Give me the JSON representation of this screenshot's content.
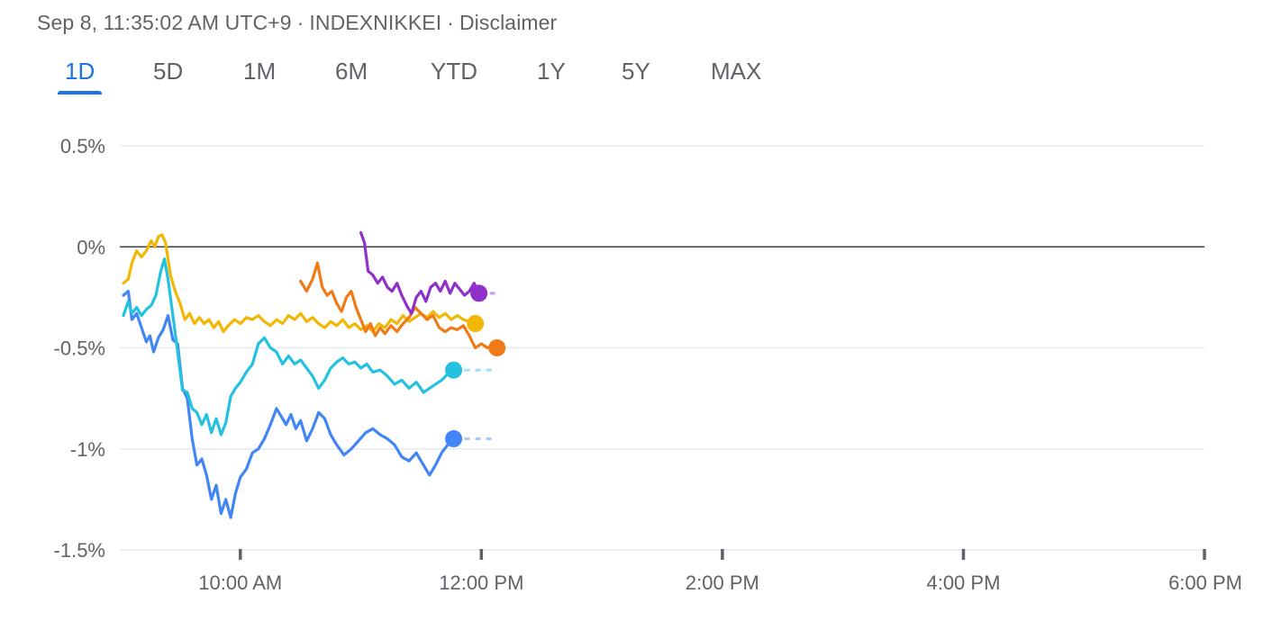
{
  "header": {
    "timestamp": "Sep 8, 11:35:02 AM UTC+9",
    "index": "INDEXNIKKEI",
    "disclaimer": "Disclaimer",
    "separator": "·"
  },
  "tabs": [
    {
      "label": "1D",
      "active": true
    },
    {
      "label": "5D",
      "active": false
    },
    {
      "label": "1M",
      "active": false
    },
    {
      "label": "6M",
      "active": false
    },
    {
      "label": "YTD",
      "active": false
    },
    {
      "label": "1Y",
      "active": false
    },
    {
      "label": "5Y",
      "active": false
    },
    {
      "label": "MAX",
      "active": false
    }
  ],
  "chart_data": {
    "type": "line",
    "title": "",
    "xlabel": "",
    "ylabel": "",
    "x_unit": "hours",
    "xlim": [
      9.0,
      18.0
    ],
    "ylim": [
      -1.5,
      0.5
    ],
    "y_ticks": [
      {
        "value": 0.5,
        "label": "0.5%"
      },
      {
        "value": 0,
        "label": "0%"
      },
      {
        "value": -0.5,
        "label": "-0.5%"
      },
      {
        "value": -1,
        "label": "-1%"
      },
      {
        "value": -1.5,
        "label": "-1.5%"
      }
    ],
    "x_ticks": [
      {
        "value": 10,
        "label": "10:00 AM"
      },
      {
        "value": 12,
        "label": "12:00 PM"
      },
      {
        "value": 14,
        "label": "2:00 PM"
      },
      {
        "value": 16,
        "label": "4:00 PM"
      },
      {
        "value": 18,
        "label": "6:00 PM"
      }
    ],
    "baseline": 0,
    "grid": true,
    "series": [
      {
        "color": "#4285f4",
        "extend_to": 12.13,
        "points": [
          [
            9.03,
            -0.24
          ],
          [
            9.07,
            -0.22
          ],
          [
            9.1,
            -0.36
          ],
          [
            9.14,
            -0.33
          ],
          [
            9.18,
            -0.4
          ],
          [
            9.22,
            -0.47
          ],
          [
            9.25,
            -0.44
          ],
          [
            9.28,
            -0.52
          ],
          [
            9.32,
            -0.45
          ],
          [
            9.36,
            -0.41
          ],
          [
            9.4,
            -0.34
          ],
          [
            9.44,
            -0.46
          ],
          [
            9.48,
            -0.48
          ],
          [
            9.52,
            -0.7
          ],
          [
            9.56,
            -0.75
          ],
          [
            9.6,
            -0.95
          ],
          [
            9.64,
            -1.08
          ],
          [
            9.68,
            -1.05
          ],
          [
            9.72,
            -1.13
          ],
          [
            9.76,
            -1.25
          ],
          [
            9.8,
            -1.18
          ],
          [
            9.84,
            -1.32
          ],
          [
            9.88,
            -1.25
          ],
          [
            9.92,
            -1.34
          ],
          [
            9.96,
            -1.22
          ],
          [
            10.0,
            -1.14
          ],
          [
            10.05,
            -1.1
          ],
          [
            10.1,
            -1.02
          ],
          [
            10.15,
            -1.0
          ],
          [
            10.2,
            -0.95
          ],
          [
            10.25,
            -0.88
          ],
          [
            10.3,
            -0.8
          ],
          [
            10.34,
            -0.84
          ],
          [
            10.38,
            -0.88
          ],
          [
            10.42,
            -0.83
          ],
          [
            10.46,
            -0.9
          ],
          [
            10.5,
            -0.86
          ],
          [
            10.55,
            -0.96
          ],
          [
            10.6,
            -0.9
          ],
          [
            10.65,
            -0.82
          ],
          [
            10.7,
            -0.85
          ],
          [
            10.75,
            -0.93
          ],
          [
            10.8,
            -0.98
          ],
          [
            10.86,
            -1.03
          ],
          [
            10.92,
            -1.0
          ],
          [
            10.98,
            -0.96
          ],
          [
            11.04,
            -0.92
          ],
          [
            11.1,
            -0.9
          ],
          [
            11.16,
            -0.93
          ],
          [
            11.22,
            -0.95
          ],
          [
            11.28,
            -0.98
          ],
          [
            11.34,
            -1.04
          ],
          [
            11.4,
            -1.06
          ],
          [
            11.46,
            -1.02
          ],
          [
            11.52,
            -1.08
          ],
          [
            11.57,
            -1.13
          ],
          [
            11.62,
            -1.08
          ],
          [
            11.67,
            -1.02
          ],
          [
            11.72,
            -0.98
          ],
          [
            11.77,
            -0.95
          ]
        ]
      },
      {
        "color": "#24c1e0",
        "extend_to": 12.13,
        "points": [
          [
            9.03,
            -0.34
          ],
          [
            9.07,
            -0.27
          ],
          [
            9.1,
            -0.33
          ],
          [
            9.14,
            -0.3
          ],
          [
            9.18,
            -0.34
          ],
          [
            9.22,
            -0.31
          ],
          [
            9.26,
            -0.29
          ],
          [
            9.3,
            -0.24
          ],
          [
            9.34,
            -0.12
          ],
          [
            9.37,
            -0.06
          ],
          [
            9.4,
            -0.16
          ],
          [
            9.44,
            -0.34
          ],
          [
            9.48,
            -0.52
          ],
          [
            9.52,
            -0.71
          ],
          [
            9.56,
            -0.72
          ],
          [
            9.6,
            -0.8
          ],
          [
            9.64,
            -0.82
          ],
          [
            9.68,
            -0.88
          ],
          [
            9.72,
            -0.83
          ],
          [
            9.76,
            -0.92
          ],
          [
            9.8,
            -0.85
          ],
          [
            9.84,
            -0.93
          ],
          [
            9.88,
            -0.87
          ],
          [
            9.92,
            -0.74
          ],
          [
            9.96,
            -0.7
          ],
          [
            10.0,
            -0.67
          ],
          [
            10.05,
            -0.62
          ],
          [
            10.1,
            -0.58
          ],
          [
            10.15,
            -0.48
          ],
          [
            10.2,
            -0.45
          ],
          [
            10.25,
            -0.5
          ],
          [
            10.3,
            -0.52
          ],
          [
            10.35,
            -0.58
          ],
          [
            10.4,
            -0.54
          ],
          [
            10.45,
            -0.58
          ],
          [
            10.5,
            -0.56
          ],
          [
            10.55,
            -0.6
          ],
          [
            10.6,
            -0.64
          ],
          [
            10.65,
            -0.7
          ],
          [
            10.7,
            -0.66
          ],
          [
            10.75,
            -0.6
          ],
          [
            10.8,
            -0.57
          ],
          [
            10.85,
            -0.55
          ],
          [
            10.9,
            -0.58
          ],
          [
            10.95,
            -0.57
          ],
          [
            11.0,
            -0.6
          ],
          [
            11.05,
            -0.58
          ],
          [
            11.1,
            -0.62
          ],
          [
            11.16,
            -0.61
          ],
          [
            11.22,
            -0.64
          ],
          [
            11.28,
            -0.68
          ],
          [
            11.34,
            -0.66
          ],
          [
            11.4,
            -0.7
          ],
          [
            11.46,
            -0.67
          ],
          [
            11.52,
            -0.72
          ],
          [
            11.57,
            -0.7
          ],
          [
            11.62,
            -0.68
          ],
          [
            11.67,
            -0.66
          ],
          [
            11.72,
            -0.63
          ],
          [
            11.77,
            -0.61
          ]
        ]
      },
      {
        "color": "#f2b705",
        "extend_to": null,
        "points": [
          [
            9.03,
            -0.18
          ],
          [
            9.07,
            -0.16
          ],
          [
            9.1,
            -0.08
          ],
          [
            9.14,
            -0.02
          ],
          [
            9.18,
            -0.05
          ],
          [
            9.22,
            -0.02
          ],
          [
            9.26,
            0.03
          ],
          [
            9.29,
            0.0
          ],
          [
            9.32,
            0.05
          ],
          [
            9.35,
            0.06
          ],
          [
            9.38,
            0.02
          ],
          [
            9.42,
            -0.14
          ],
          [
            9.46,
            -0.22
          ],
          [
            9.5,
            -0.28
          ],
          [
            9.54,
            -0.36
          ],
          [
            9.58,
            -0.33
          ],
          [
            9.62,
            -0.38
          ],
          [
            9.66,
            -0.35
          ],
          [
            9.7,
            -0.38
          ],
          [
            9.74,
            -0.36
          ],
          [
            9.78,
            -0.4
          ],
          [
            9.82,
            -0.37
          ],
          [
            9.86,
            -0.42
          ],
          [
            9.9,
            -0.39
          ],
          [
            9.95,
            -0.36
          ],
          [
            10.0,
            -0.38
          ],
          [
            10.05,
            -0.35
          ],
          [
            10.1,
            -0.36
          ],
          [
            10.15,
            -0.34
          ],
          [
            10.2,
            -0.37
          ],
          [
            10.25,
            -0.39
          ],
          [
            10.3,
            -0.36
          ],
          [
            10.35,
            -0.38
          ],
          [
            10.4,
            -0.34
          ],
          [
            10.45,
            -0.36
          ],
          [
            10.5,
            -0.33
          ],
          [
            10.55,
            -0.37
          ],
          [
            10.6,
            -0.35
          ],
          [
            10.65,
            -0.38
          ],
          [
            10.7,
            -0.4
          ],
          [
            10.75,
            -0.37
          ],
          [
            10.8,
            -0.39
          ],
          [
            10.85,
            -0.36
          ],
          [
            10.9,
            -0.4
          ],
          [
            10.95,
            -0.38
          ],
          [
            11.0,
            -0.41
          ],
          [
            11.05,
            -0.39
          ],
          [
            11.1,
            -0.42
          ],
          [
            11.15,
            -0.38
          ],
          [
            11.2,
            -0.4
          ],
          [
            11.25,
            -0.36
          ],
          [
            11.3,
            -0.38
          ],
          [
            11.35,
            -0.34
          ],
          [
            11.4,
            -0.37
          ],
          [
            11.45,
            -0.35
          ],
          [
            11.5,
            -0.33
          ],
          [
            11.55,
            -0.35
          ],
          [
            11.6,
            -0.32
          ],
          [
            11.65,
            -0.35
          ],
          [
            11.7,
            -0.33
          ],
          [
            11.75,
            -0.36
          ],
          [
            11.8,
            -0.34
          ],
          [
            11.85,
            -0.36
          ],
          [
            11.9,
            -0.37
          ],
          [
            11.95,
            -0.38
          ]
        ]
      },
      {
        "color": "#f07b16",
        "extend_to": null,
        "points": [
          [
            10.5,
            -0.17
          ],
          [
            10.55,
            -0.22
          ],
          [
            10.6,
            -0.16
          ],
          [
            10.64,
            -0.08
          ],
          [
            10.68,
            -0.2
          ],
          [
            10.72,
            -0.24
          ],
          [
            10.76,
            -0.22
          ],
          [
            10.8,
            -0.28
          ],
          [
            10.84,
            -0.32
          ],
          [
            10.88,
            -0.25
          ],
          [
            10.92,
            -0.22
          ],
          [
            10.96,
            -0.3
          ],
          [
            11.0,
            -0.36
          ],
          [
            11.04,
            -0.42
          ],
          [
            11.08,
            -0.38
          ],
          [
            11.12,
            -0.44
          ],
          [
            11.16,
            -0.4
          ],
          [
            11.2,
            -0.43
          ],
          [
            11.25,
            -0.39
          ],
          [
            11.3,
            -0.42
          ],
          [
            11.35,
            -0.38
          ],
          [
            11.4,
            -0.35
          ],
          [
            11.45,
            -0.3
          ],
          [
            11.5,
            -0.33
          ],
          [
            11.55,
            -0.36
          ],
          [
            11.6,
            -0.34
          ],
          [
            11.65,
            -0.4
          ],
          [
            11.7,
            -0.42
          ],
          [
            11.75,
            -0.4
          ],
          [
            11.8,
            -0.41
          ],
          [
            11.85,
            -0.39
          ],
          [
            11.9,
            -0.44
          ],
          [
            11.95,
            -0.5
          ],
          [
            12.0,
            -0.48
          ],
          [
            12.05,
            -0.5
          ],
          [
            12.1,
            -0.49
          ],
          [
            12.13,
            -0.5
          ]
        ]
      },
      {
        "color": "#8e30c9",
        "extend_to": 12.13,
        "points": [
          [
            11.0,
            0.07
          ],
          [
            11.03,
            0.02
          ],
          [
            11.06,
            -0.12
          ],
          [
            11.1,
            -0.14
          ],
          [
            11.14,
            -0.18
          ],
          [
            11.18,
            -0.15
          ],
          [
            11.22,
            -0.2
          ],
          [
            11.26,
            -0.22
          ],
          [
            11.3,
            -0.18
          ],
          [
            11.34,
            -0.24
          ],
          [
            11.38,
            -0.29
          ],
          [
            11.42,
            -0.33
          ],
          [
            11.46,
            -0.25
          ],
          [
            11.5,
            -0.22
          ],
          [
            11.54,
            -0.27
          ],
          [
            11.58,
            -0.2
          ],
          [
            11.62,
            -0.18
          ],
          [
            11.66,
            -0.22
          ],
          [
            11.7,
            -0.17
          ],
          [
            11.74,
            -0.23
          ],
          [
            11.78,
            -0.18
          ],
          [
            11.82,
            -0.21
          ],
          [
            11.86,
            -0.24
          ],
          [
            11.9,
            -0.22
          ],
          [
            11.94,
            -0.18
          ],
          [
            11.98,
            -0.23
          ]
        ]
      }
    ]
  }
}
